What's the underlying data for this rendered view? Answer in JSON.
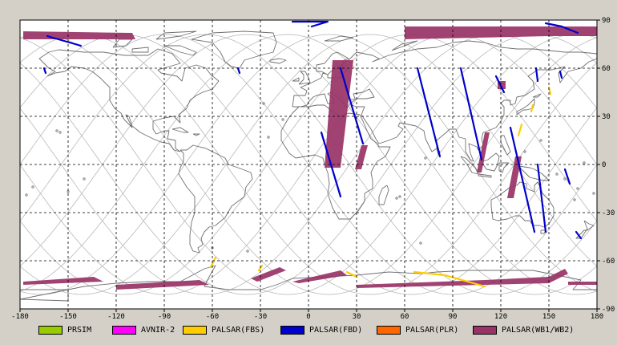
{
  "chart_data": {
    "type": "map",
    "projection": "equirectangular",
    "x_ticks": [
      "-180",
      "-150",
      "-120",
      "-90",
      "-60",
      "-30",
      "0",
      "30",
      "60",
      "90",
      "120",
      "150",
      "180"
    ],
    "y_ticks_right": [
      "90",
      "60",
      "30",
      "0",
      "-30",
      "-60",
      "-90"
    ],
    "xlim": [
      -180,
      180
    ],
    "ylim": [
      -90,
      90
    ],
    "grid": true,
    "legend_placement": "bottom",
    "legend": [
      {
        "label": "PRSIM",
        "color": "#99cc00"
      },
      {
        "label": "AVNIR-2",
        "color": "#ff00ff"
      },
      {
        "label": "PALSAR(FBS)",
        "color": "#ffcc00"
      },
      {
        "label": "PALSAR(FBD)",
        "color": "#0000cc"
      },
      {
        "label": "PALSAR(PLR)",
        "color": "#ff6600"
      },
      {
        "label": "PALSAR(WB1/WB2)",
        "color": "#993366"
      }
    ],
    "wb_swaths": [
      {
        "p": [
          [
            -178,
            83
          ],
          [
            -110,
            82
          ],
          [
            -108,
            78
          ],
          [
            -178,
            78
          ]
        ]
      },
      {
        "p": [
          [
            60,
            86
          ],
          [
            180,
            86
          ],
          [
            180,
            80
          ],
          [
            150,
            80
          ],
          [
            60,
            78
          ]
        ]
      },
      {
        "p": [
          [
            15,
            65
          ],
          [
            28,
            65
          ],
          [
            20,
            -2
          ],
          [
            10,
            -2
          ]
        ]
      },
      {
        "p": [
          [
            33,
            12
          ],
          [
            37,
            12
          ],
          [
            33,
            -3
          ],
          [
            29,
            -3
          ]
        ]
      },
      {
        "p": [
          [
            110,
            20
          ],
          [
            113,
            20
          ],
          [
            108,
            -5
          ],
          [
            105,
            -5
          ]
        ]
      },
      {
        "p": [
          [
            118,
            52
          ],
          [
            123,
            52
          ],
          [
            123,
            47
          ],
          [
            118,
            47
          ]
        ]
      },
      {
        "p": [
          [
            129,
            5
          ],
          [
            133,
            5
          ],
          [
            128,
            -21
          ],
          [
            124,
            -21
          ]
        ]
      },
      {
        "p": [
          [
            -178,
            -73
          ],
          [
            -134,
            -70
          ],
          [
            -128,
            -73
          ],
          [
            -178,
            -75
          ]
        ]
      },
      {
        "p": [
          [
            -120,
            -75
          ],
          [
            -68,
            -72
          ],
          [
            -62,
            -75
          ],
          [
            -120,
            -78
          ]
        ]
      },
      {
        "p": [
          [
            -36,
            -71
          ],
          [
            -18,
            -64
          ],
          [
            -14,
            -66
          ],
          [
            -32,
            -73
          ]
        ]
      },
      {
        "p": [
          [
            -10,
            -73
          ],
          [
            20,
            -66
          ],
          [
            24,
            -69
          ],
          [
            -6,
            -74
          ]
        ]
      },
      {
        "p": [
          [
            30,
            -75
          ],
          [
            110,
            -72
          ],
          [
            150,
            -70
          ],
          [
            160,
            -65
          ],
          [
            162,
            -68
          ],
          [
            150,
            -74
          ],
          [
            30,
            -77
          ]
        ]
      },
      {
        "p": [
          [
            162,
            -73
          ],
          [
            180,
            -73
          ],
          [
            180,
            -75
          ],
          [
            162,
            -75
          ]
        ]
      }
    ],
    "fbd_lines": [
      [
        [
          -163,
          80
        ],
        [
          -142,
          74
        ]
      ],
      [
        [
          -165,
          60
        ],
        [
          -164,
          57
        ]
      ],
      [
        [
          -44,
          60
        ],
        [
          -43,
          57
        ]
      ],
      [
        [
          -10,
          89
        ],
        [
          12,
          89
        ],
        [
          2,
          86
        ]
      ],
      [
        [
          148,
          88
        ],
        [
          158,
          86
        ],
        [
          168,
          82
        ]
      ],
      [
        [
          20,
          60
        ],
        [
          34,
          13
        ]
      ],
      [
        [
          8,
          20
        ],
        [
          20,
          -20
        ]
      ],
      [
        [
          68,
          60
        ],
        [
          82,
          5
        ]
      ],
      [
        [
          95,
          60
        ],
        [
          108,
          3
        ]
      ],
      [
        [
          117,
          55
        ],
        [
          122,
          45
        ]
      ],
      [
        [
          126,
          23
        ],
        [
          141,
          -42
        ]
      ],
      [
        [
          143,
          0
        ],
        [
          148,
          -42
        ]
      ],
      [
        [
          160,
          -3
        ],
        [
          163,
          -12
        ]
      ],
      [
        [
          142,
          60
        ],
        [
          143,
          52
        ]
      ],
      [
        [
          157,
          58
        ],
        [
          158,
          54
        ]
      ],
      [
        [
          167,
          -42
        ],
        [
          170,
          -46
        ]
      ]
    ],
    "fbs_lines": [
      [
        [
          24,
          -67
        ],
        [
          30,
          -70
        ]
      ],
      [
        [
          66,
          -67
        ],
        [
          85,
          -69
        ],
        [
          110,
          -76
        ]
      ],
      [
        [
          -58,
          -58
        ],
        [
          -61,
          -64
        ]
      ],
      [
        [
          -29,
          -63
        ],
        [
          -31,
          -66
        ]
      ],
      [
        [
          133,
          25
        ],
        [
          131,
          18
        ]
      ],
      [
        [
          140,
          37
        ],
        [
          139,
          33
        ]
      ],
      [
        [
          150,
          48
        ],
        [
          151,
          44
        ]
      ]
    ]
  }
}
